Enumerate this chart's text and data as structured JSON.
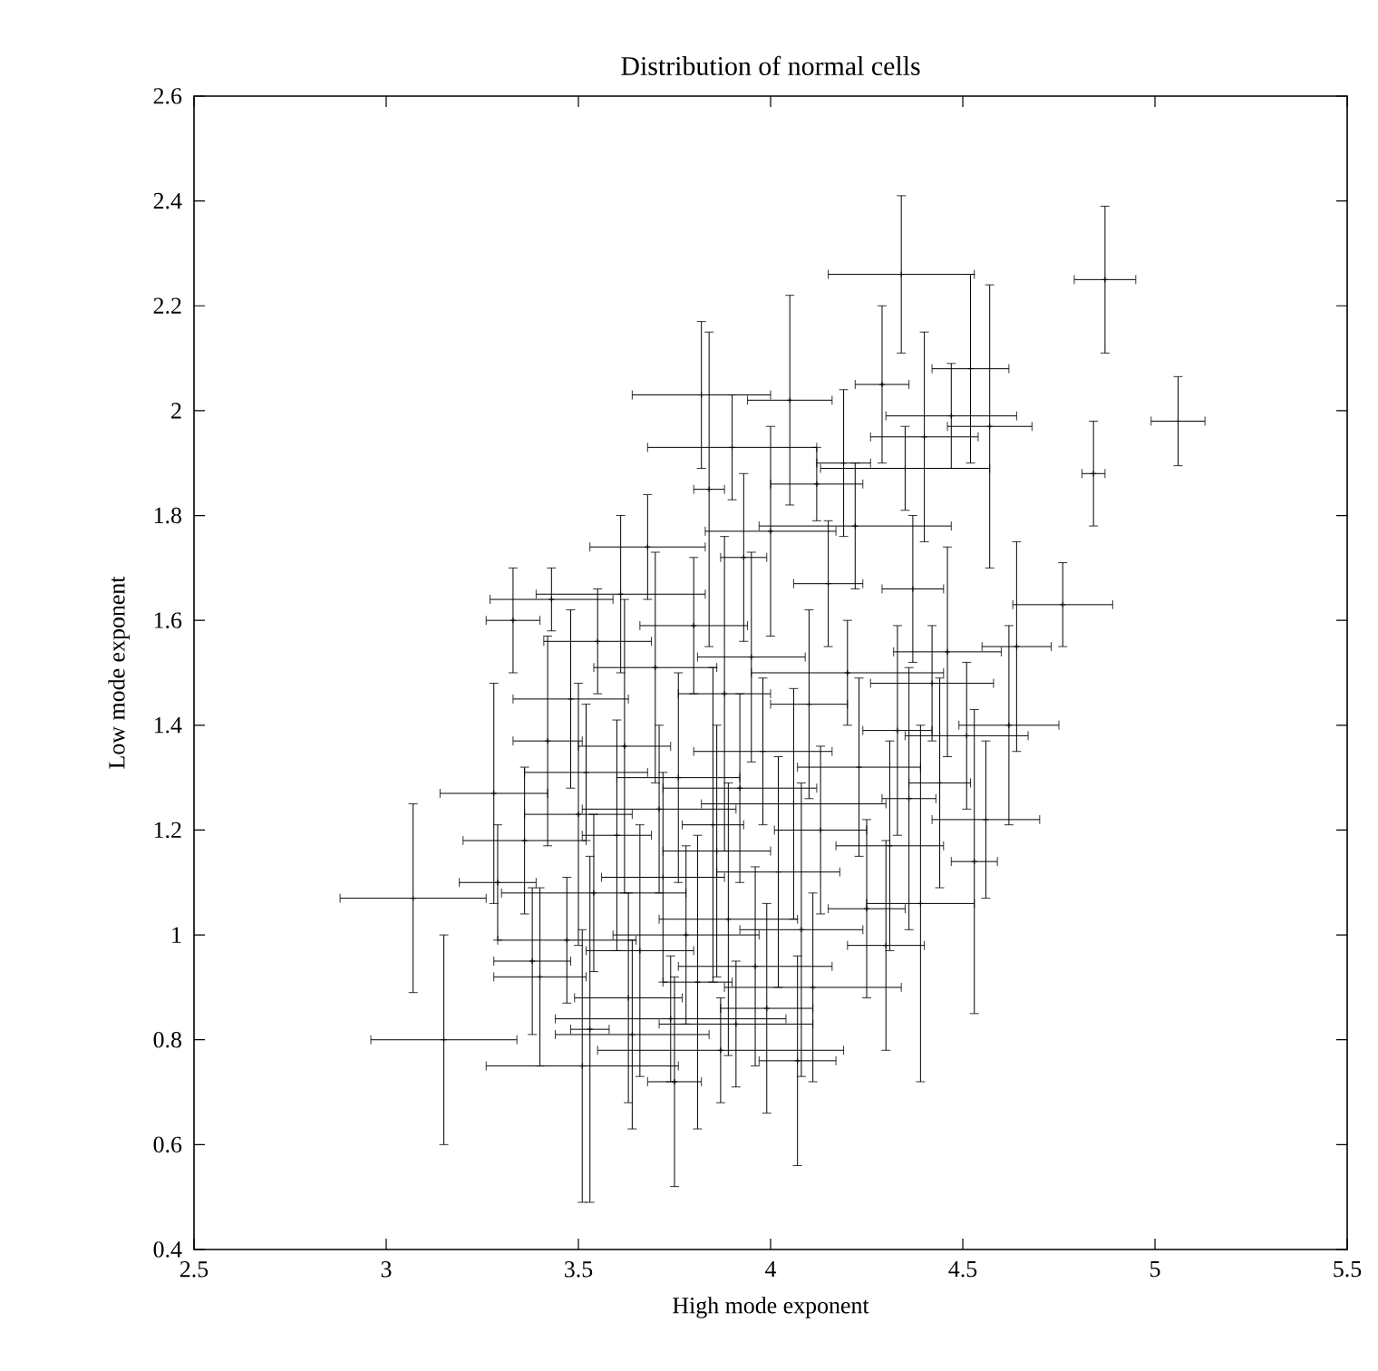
{
  "chart_data": {
    "type": "scatter",
    "title": "Distribution of normal cells",
    "xlabel": "High mode exponent",
    "ylabel": "Low mode exponent",
    "xlim": [
      2.5,
      5.5
    ],
    "ylim": [
      0.4,
      2.6
    ],
    "xticks": [
      2.5,
      3,
      3.5,
      4,
      4.5,
      5,
      5.5
    ],
    "yticks": [
      0.4,
      0.6,
      0.8,
      1,
      1.2,
      1.4,
      1.6,
      1.8,
      2,
      2.2,
      2.4,
      2.6
    ],
    "grid": false,
    "marker": "cross",
    "series": [
      {
        "color": "#000000",
        "x": [
          4.34,
          4.87,
          5.06,
          4.84,
          4.76,
          4.52,
          4.57,
          4.47,
          4.4,
          4.35,
          4.29,
          4.19,
          4.05,
          3.82,
          3.9,
          3.84,
          4.12,
          4.22,
          4.0,
          3.68,
          3.93,
          3.61,
          3.43,
          3.33,
          3.8,
          4.15,
          4.37,
          4.64,
          4.46,
          3.55,
          3.95,
          4.2,
          4.42,
          3.7,
          3.48,
          3.88,
          4.1,
          4.62,
          4.51,
          4.33,
          3.42,
          3.62,
          3.98,
          4.23,
          3.76,
          3.52,
          4.44,
          4.56,
          3.28,
          3.92,
          4.06,
          3.71,
          3.5,
          4.36,
          3.85,
          3.6,
          4.13,
          4.31,
          3.86,
          3.36,
          4.53,
          4.02,
          3.72,
          3.29,
          3.07,
          3.54,
          4.25,
          4.39,
          3.89,
          3.78,
          4.08,
          3.47,
          3.66,
          4.3,
          3.38,
          3.96,
          3.81,
          3.4,
          4.11,
          3.63,
          3.99,
          3.74,
          3.53,
          3.91,
          3.15,
          3.64,
          3.87,
          3.51,
          4.07,
          3.75
        ],
        "values": [
          2.26,
          2.25,
          1.98,
          1.88,
          1.63,
          2.08,
          1.97,
          1.99,
          1.95,
          1.89,
          2.05,
          1.9,
          2.02,
          2.03,
          1.93,
          1.85,
          1.86,
          1.78,
          1.77,
          1.74,
          1.72,
          1.65,
          1.64,
          1.6,
          1.59,
          1.67,
          1.66,
          1.55,
          1.54,
          1.56,
          1.53,
          1.5,
          1.48,
          1.51,
          1.45,
          1.46,
          1.44,
          1.4,
          1.38,
          1.39,
          1.37,
          1.36,
          1.35,
          1.32,
          1.3,
          1.31,
          1.29,
          1.22,
          1.27,
          1.28,
          1.25,
          1.24,
          1.23,
          1.26,
          1.21,
          1.19,
          1.2,
          1.17,
          1.16,
          1.18,
          1.14,
          1.12,
          1.11,
          1.1,
          1.07,
          1.08,
          1.05,
          1.06,
          1.03,
          1.0,
          1.01,
          0.99,
          0.97,
          0.98,
          0.95,
          0.94,
          0.91,
          0.92,
          0.9,
          0.88,
          0.86,
          0.84,
          0.82,
          0.83,
          0.8,
          0.81,
          0.78,
          0.75,
          0.76,
          0.72
        ],
        "xerrors": [
          0.19,
          0.08,
          0.07,
          0.03,
          0.13,
          0.1,
          0.11,
          0.17,
          0.14,
          0.22,
          0.07,
          0.07,
          0.11,
          0.18,
          0.22,
          0.04,
          0.12,
          0.25,
          0.17,
          0.15,
          0.06,
          0.22,
          0.16,
          0.07,
          0.14,
          0.09,
          0.08,
          0.09,
          0.14,
          0.14,
          0.14,
          0.25,
          0.16,
          0.16,
          0.15,
          0.12,
          0.1,
          0.13,
          0.16,
          0.09,
          0.09,
          0.12,
          0.18,
          0.16,
          0.16,
          0.16,
          0.08,
          0.14,
          0.14,
          0.2,
          0.24,
          0.2,
          0.14,
          0.07,
          0.08,
          0.09,
          0.12,
          0.14,
          0.14,
          0.16,
          0.06,
          0.16,
          0.16,
          0.1,
          0.19,
          0.24,
          0.1,
          0.14,
          0.18,
          0.19,
          0.16,
          0.18,
          0.14,
          0.1,
          0.1,
          0.2,
          0.09,
          0.12,
          0.23,
          0.14,
          0.12,
          0.3,
          0.05,
          0.2,
          0.19,
          0.2,
          0.32,
          0.25,
          0.1,
          0.07
        ],
        "errors": [
          0.15,
          0.14,
          0.085,
          0.1,
          0.08,
          0.18,
          0.27,
          0.1,
          0.2,
          0.08,
          0.15,
          0.14,
          0.2,
          0.14,
          0.1,
          0.3,
          0.07,
          0.12,
          0.2,
          0.1,
          0.16,
          0.15,
          0.06,
          0.1,
          0.13,
          0.12,
          0.14,
          0.2,
          0.2,
          0.1,
          0.2,
          0.1,
          0.11,
          0.22,
          0.17,
          0.3,
          0.18,
          0.19,
          0.14,
          0.2,
          0.2,
          0.28,
          0.14,
          0.17,
          0.2,
          0.13,
          0.2,
          0.15,
          0.21,
          0.18,
          0.22,
          0.16,
          0.25,
          0.25,
          0.3,
          0.22,
          0.16,
          0.2,
          0.24,
          0.14,
          0.29,
          0.22,
          0.2,
          0.11,
          0.18,
          0.15,
          0.17,
          0.34,
          0.26,
          0.17,
          0.28,
          0.12,
          0.24,
          0.2,
          0.14,
          0.19,
          0.28,
          0.17,
          0.18,
          0.2,
          0.2,
          0.12,
          0.33,
          0.12,
          0.2,
          0.18,
          0.1,
          0.26,
          0.2,
          0.2
        ]
      }
    ]
  }
}
